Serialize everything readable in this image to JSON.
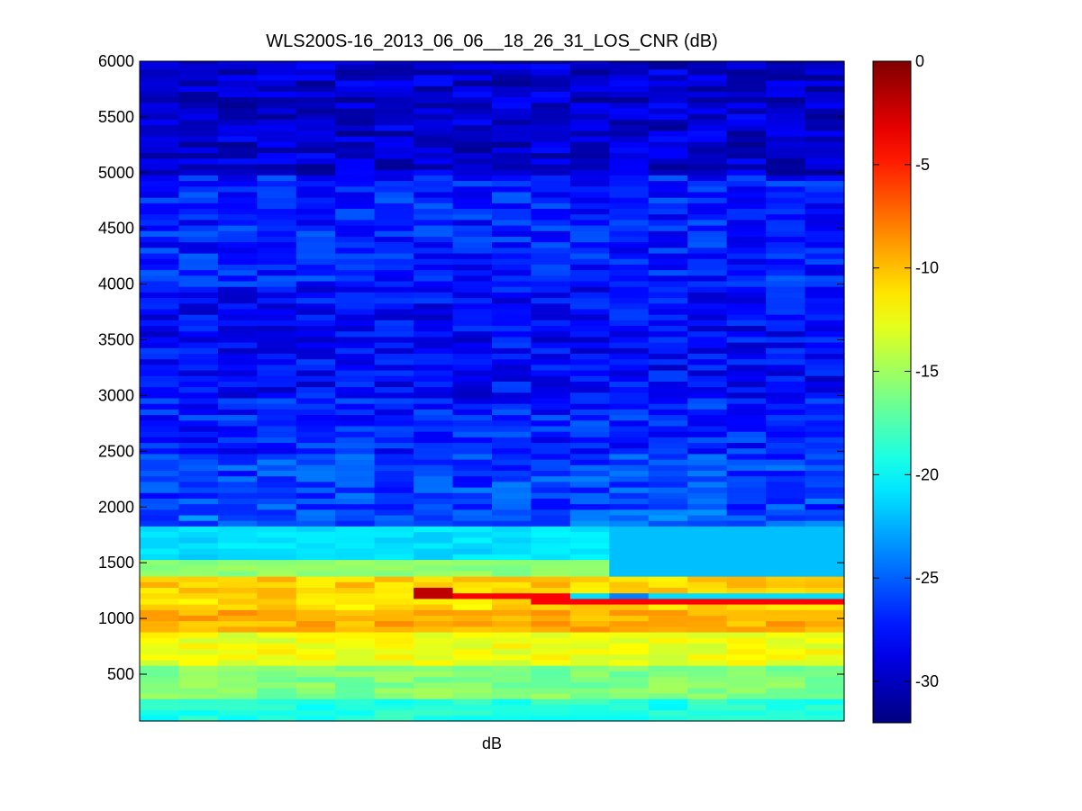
{
  "chart_data": {
    "type": "heatmap",
    "title": "WLS200S-16_2013_06_06__18_26_31_LOS_CNR (dB)",
    "xlabel": "dB",
    "ylabel": "",
    "ylim": [
      80,
      6000
    ],
    "yticks": [
      500,
      1000,
      1500,
      2000,
      2500,
      3000,
      3500,
      4000,
      4500,
      5000,
      5500,
      6000
    ],
    "xticks": [],
    "columns": 18,
    "row_height": 50,
    "colormap": "jet",
    "colorbar": {
      "range": [
        -32,
        0
      ],
      "ticks": [
        0,
        -5,
        -10,
        -15,
        -20,
        -25,
        -30
      ],
      "placement": "right"
    },
    "bands": [
      {
        "from": 80,
        "to": 300,
        "cnr": -19
      },
      {
        "from": 300,
        "to": 600,
        "cnr": -16
      },
      {
        "from": 600,
        "to": 900,
        "cnr": -12.5
      },
      {
        "from": 900,
        "to": 1100,
        "cnr": -9.5
      },
      {
        "from": 1100,
        "to": 1200,
        "cnr": -11
      },
      {
        "from": 1200,
        "to": 1400,
        "cnr": -10.5
      },
      {
        "from": 1400,
        "to": 1550,
        "cnr": -15.5
      },
      {
        "from": 1550,
        "to": 1850,
        "cnr": -21
      },
      {
        "from": 1850,
        "to": 2000,
        "cnr": -25
      },
      {
        "from": 2000,
        "to": 2500,
        "cnr": -26
      },
      {
        "from": 2500,
        "to": 3000,
        "cnr": -27
      },
      {
        "from": 3000,
        "to": 4000,
        "cnr": -28
      },
      {
        "from": 4000,
        "to": 5000,
        "cnr": -27
      },
      {
        "from": 5000,
        "to": 6000,
        "cnr": -29.5
      }
    ],
    "features": [
      {
        "from_col": 7,
        "to_col": 8,
        "y_from": 1200,
        "y_to": 1300,
        "cnr": -2
      },
      {
        "from_col": 8,
        "to_col": 10,
        "y_from": 1200,
        "y_to": 1250,
        "cnr": -4
      },
      {
        "from_col": 10,
        "to_col": 11,
        "y_from": 1150,
        "y_to": 1250,
        "cnr": -4
      },
      {
        "from_col": 11,
        "to_col": 18,
        "y_from": 1150,
        "y_to": 1200,
        "cnr": -4
      },
      {
        "from_col": 11,
        "to_col": 18,
        "y_from": 1200,
        "y_to": 1250,
        "cnr": -21
      },
      {
        "from_col": 12,
        "to_col": 13,
        "y_from": 1200,
        "y_to": 1250,
        "cnr": -24
      },
      {
        "from_col": 12,
        "to_col": 18,
        "y_from": 1400,
        "y_to": 1850,
        "cnr": -22
      }
    ]
  }
}
